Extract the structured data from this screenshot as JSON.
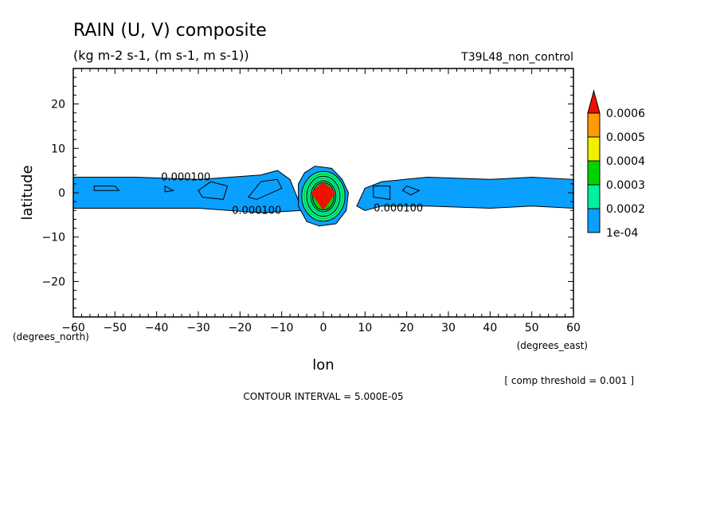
{
  "chart_data": {
    "type": "heatmap",
    "title": "RAIN (U, V) composite",
    "subtitle": "(kg m-2 s-1, (m s-1, m s-1))",
    "run_label": "T39L48_non_control",
    "xlabel": "lon",
    "ylabel": "latitude",
    "xunit": "(degrees_east)",
    "yunit": "(degrees_north)",
    "xlim": [
      -60,
      60
    ],
    "ylim": [
      -28,
      28
    ],
    "xticks": [
      -60,
      -50,
      -40,
      -30,
      -20,
      -10,
      0,
      10,
      20,
      30,
      40,
      50,
      60
    ],
    "yticks": [
      -20,
      -10,
      0,
      10,
      20
    ],
    "contour_interval_text": "CONTOUR INTERVAL = 5.000E-05",
    "threshold_text": "[ comp threshold = 0.001 ]",
    "colorbar": {
      "levels": [
        "1e-04",
        "0.0002",
        "0.0003",
        "0.0004",
        "0.0005",
        "0.0006"
      ],
      "colors": [
        "#0aa0ff",
        "#00f0a0",
        "#00d400",
        "#f0f000",
        "#ff9a00",
        "#ee1100"
      ]
    },
    "contour_labels": [
      {
        "text": "0.000100",
        "lon": -33,
        "lat": 3.5
      },
      {
        "text": "0.000100",
        "lon": -16,
        "lat": -4
      },
      {
        "text": "0.000100",
        "lon": 18,
        "lat": -3.5
      }
    ],
    "band_west": [
      [
        -60,
        3.5
      ],
      [
        -45,
        3.5
      ],
      [
        -30,
        3.0
      ],
      [
        -15,
        4.0
      ],
      [
        -11,
        5.0
      ],
      [
        -8,
        3.0
      ],
      [
        -5,
        -4.0
      ],
      [
        -15,
        -4.5
      ],
      [
        -30,
        -3.5
      ],
      [
        -45,
        -3.5
      ],
      [
        -60,
        -3.5
      ]
    ],
    "band_east": [
      [
        8,
        -3.0
      ],
      [
        10,
        1.0
      ],
      [
        14,
        2.5
      ],
      [
        25,
        3.5
      ],
      [
        40,
        3.0
      ],
      [
        50,
        3.5
      ],
      [
        60,
        3.0
      ],
      [
        60,
        -3.5
      ],
      [
        50,
        -3.0
      ],
      [
        40,
        -3.5
      ],
      [
        25,
        -3.0
      ],
      [
        14,
        -3.0
      ],
      [
        10,
        -4.0
      ]
    ],
    "core_blob": [
      [
        -4.5,
        4.5
      ],
      [
        -2,
        6
      ],
      [
        2,
        5.5
      ],
      [
        4.5,
        3
      ],
      [
        6,
        0
      ],
      [
        5.5,
        -4
      ],
      [
        3,
        -7
      ],
      [
        -1,
        -7.5
      ],
      [
        -4,
        -6.5
      ],
      [
        -6,
        -3
      ],
      [
        -6,
        2
      ]
    ],
    "max_patch": [
      [
        0,
        2.5
      ],
      [
        3,
        0
      ],
      [
        0,
        -4
      ],
      [
        -3,
        0
      ]
    ],
    "rings": [
      {
        "rx": 5.2,
        "ry": 5.6,
        "color": "#000000"
      },
      {
        "rx": 4.6,
        "ry": 5.0,
        "color": "#00c800"
      },
      {
        "rx": 4.0,
        "ry": 4.5,
        "color": "#000000"
      },
      {
        "rx": 3.5,
        "ry": 4.0,
        "color": "#00c800"
      },
      {
        "rx": 3.0,
        "ry": 3.5,
        "color": "#000000"
      }
    ],
    "cells": [
      [
        [
          -55,
          1.5
        ],
        [
          -50,
          1.5
        ],
        [
          -49,
          0.5
        ],
        [
          -55,
          0.5
        ]
      ],
      [
        [
          -38,
          1.5
        ],
        [
          -36,
          0.5
        ],
        [
          -38,
          0.2
        ]
      ],
      [
        [
          -27,
          2.5
        ],
        [
          -23,
          1.5
        ],
        [
          -24,
          -1.5
        ],
        [
          -29,
          -1.0
        ],
        [
          -30,
          0.5
        ]
      ],
      [
        [
          -15,
          2.5
        ],
        [
          -11,
          3.0
        ],
        [
          -10,
          1.0
        ],
        [
          -16,
          -1.5
        ],
        [
          -18,
          -1.0
        ]
      ],
      [
        [
          12,
          1.5
        ],
        [
          16,
          1.5
        ],
        [
          16,
          -1.5
        ],
        [
          12,
          -1.0
        ]
      ],
      [
        [
          20,
          1.5
        ],
        [
          23,
          0.5
        ],
        [
          21,
          -0.5
        ],
        [
          19,
          0.5
        ]
      ]
    ]
  }
}
